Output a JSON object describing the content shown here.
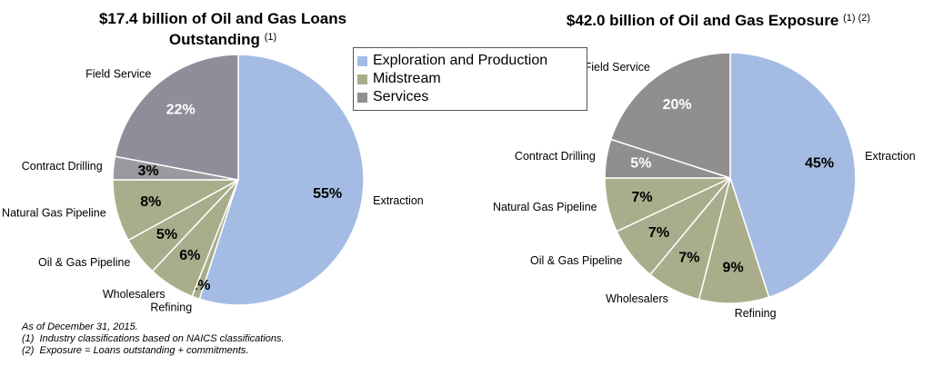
{
  "chart_data": [
    {
      "type": "pie",
      "title": "$17.4 billion of Oil and Gas Loans Outstanding",
      "title_note": "(1)",
      "categories": [
        "Extraction",
        "Refining",
        "Wholesalers",
        "Oil & Gas Pipeline",
        "Natural Gas Pipeline",
        "Contract Drilling",
        "Field Service"
      ],
      "values": [
        55,
        1,
        6,
        5,
        8,
        3,
        22
      ],
      "value_labels": [
        "55%",
        "1%",
        "6%",
        "5%",
        "8%",
        "3%",
        "22%"
      ],
      "colors": [
        "#a4bce3",
        "#a9ad8b",
        "#a9ad8b",
        "#a9ad8b",
        "#a9ad8b",
        "#9a9a9e",
        "#8e8e9a"
      ]
    },
    {
      "type": "pie",
      "title": "$42.0 billion of Oil and Gas Exposure",
      "title_note": "(1) (2)",
      "categories": [
        "Extraction",
        "Refining",
        "Wholesalers",
        "Oil & Gas Pipeline",
        "Natural Gas Pipeline",
        "Contract Drilling",
        "Field Service"
      ],
      "values": [
        45,
        9,
        7,
        7,
        7,
        5,
        20
      ],
      "value_labels": [
        "45%",
        "9%",
        "7%",
        "7%",
        "7%",
        "5%",
        "20%"
      ],
      "colors": [
        "#a4bce3",
        "#a9ad8b",
        "#a9ad8b",
        "#a9ad8b",
        "#a9ad8b",
        "#8f8f8f",
        "#8f8f8f"
      ]
    }
  ],
  "legend": [
    {
      "name": "Exploration and Production",
      "color": "#a4bce3"
    },
    {
      "name": "Midstream",
      "color": "#a9ad8b"
    },
    {
      "name": "Services",
      "color": "#8f8f8f"
    }
  ],
  "notes": [
    "As of December 31, 2015.",
    "(1)  Industry classifications based on NAICS classifications.",
    "(2)  Exposure = Loans outstanding + commitments."
  ]
}
